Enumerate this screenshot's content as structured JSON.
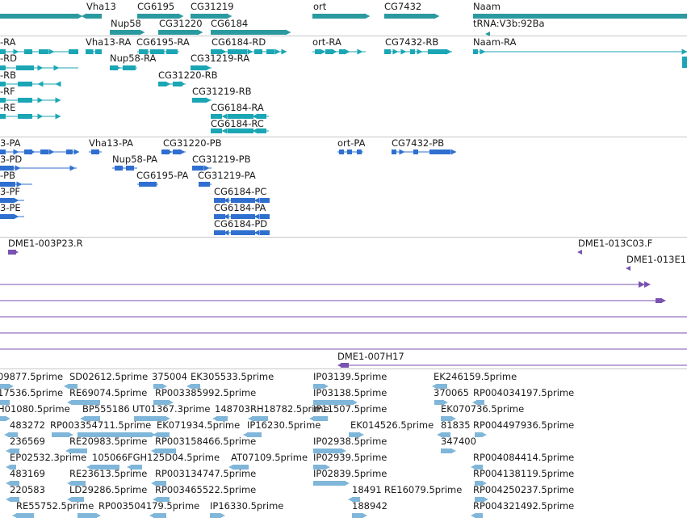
{
  "colors": {
    "gene": "#2a9aa0",
    "transcript_rna": "#1aa6b4",
    "transcript_protein": "#2f6fd0",
    "clone": "#7a52b0",
    "est": "#7fb6d9",
    "separator": "#c8c8c8"
  },
  "tracks": {
    "genes": {
      "labels": [
        "Vha13",
        "CG6195",
        "CG31219",
        "ort",
        "CG7432",
        "Naam",
        "Nup58",
        "CG31220",
        "CG6184",
        "tRNA:V3b:92Ba"
      ]
    },
    "rna": {
      "labels": [
        "-RA",
        "Vha13-RA",
        "CG6195-RA",
        "CG6184-RD",
        "ort-RA",
        "CG7432-RB",
        "Naam-RA",
        "-RD",
        "Nup58-RA",
        "CG31219-RA",
        "-RB",
        "CG31220-RB",
        "-RF",
        "CG31219-RB",
        "-RE",
        "CG6184-RA",
        "CG6184-RC"
      ]
    },
    "protein": {
      "labels": [
        "3-PA",
        "Vha13-PA",
        "CG31220-PB",
        "ort-PA",
        "CG7432-PB",
        "3-PD",
        "Nup58-PA",
        "CG31219-PB",
        "-PB",
        "CG6195-PA",
        "CG31219-PA",
        "3-PF",
        "CG6184-PC",
        "3-PE",
        "CG6184-PA",
        "CG6184-PD"
      ]
    },
    "clones": {
      "labels": [
        "DME1-003P23.R",
        "DME1-013C03.F",
        "DME1-013E1",
        "DME1-007H17"
      ]
    },
    "ests": {
      "labels": [
        "09877.5prime",
        "SD02612.5prime",
        "375004",
        "EK305533.5prime",
        "IP03139.5prime",
        "EK246159.5prime",
        "17536.5prime",
        "RE69074.5prime",
        "RP003385992.5prime",
        "IP03138.5prime",
        "370065",
        "RP004034197.5prime",
        "H01080.5prime",
        "BP555186",
        "UT01367.3prime",
        "148703",
        "RH18782.5prime",
        "IP11507.5prime",
        "EK070736.5prime",
        "483272",
        "RP003354711.5prime",
        "EK071934.5prime",
        "IP16230.5prime",
        "EK014526.5prime",
        "81835",
        "RP004497936.5prime",
        "236569",
        "RE20983.5prime",
        "RP003158466.5prime",
        "IP02938.5prime",
        "347400",
        "EP02532.3prime",
        "105066",
        "FGH125D04.5prime",
        "AT07109.5prime",
        "IP02939.5prime",
        "RP004084414.5prime",
        "483169",
        "RE23613.5prime",
        "RP003134747.5prime",
        "IP02839.5prime",
        "RP004138119.5prime",
        "220583",
        "LD29286.5prime",
        "RP003465522.5prime",
        "18491",
        "RE16079.5prime",
        "RP004250237.5prime",
        "RE55752.5prime",
        "RP003504179.5prime",
        "IP16330.5prime",
        "188942",
        "RP004321492.5prime"
      ]
    }
  }
}
